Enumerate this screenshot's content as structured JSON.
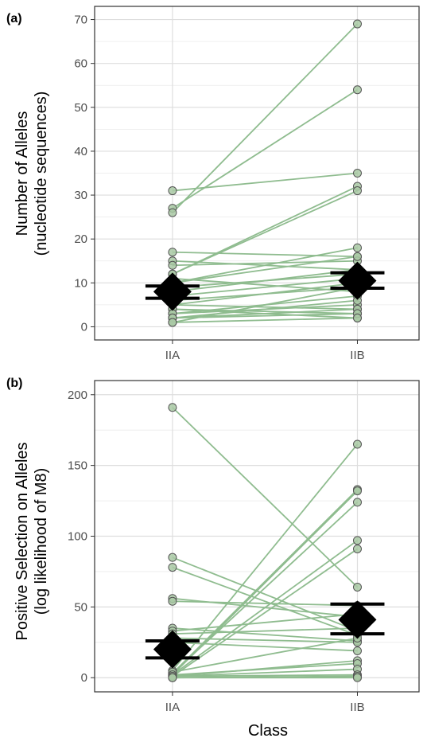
{
  "chart_data": [
    {
      "type": "scatter",
      "panel_label": "(a)",
      "ylabel_lines": [
        "Number of Alleles",
        "(nucleotide sequences)"
      ],
      "xlabel": "",
      "categories": [
        "IIA",
        "IIB"
      ],
      "ylim": [
        -3,
        73
      ],
      "yticks": [
        0,
        10,
        20,
        30,
        40,
        50,
        60,
        70
      ],
      "ytick_labels": [
        "0",
        "10",
        "20",
        "30",
        "40",
        "50",
        "60",
        "70"
      ],
      "grid": true,
      "paired_lines": [
        [
          31,
          35
        ],
        [
          27,
          54
        ],
        [
          26,
          69
        ],
        [
          17,
          16
        ],
        [
          15,
          13
        ],
        [
          14,
          15
        ],
        [
          12,
          32
        ],
        [
          12,
          31
        ],
        [
          11,
          8
        ],
        [
          10,
          16
        ],
        [
          10,
          18
        ],
        [
          9,
          12
        ],
        [
          8,
          13
        ],
        [
          7,
          11
        ],
        [
          6,
          9
        ],
        [
          5,
          10
        ],
        [
          5,
          4
        ],
        [
          4,
          3
        ],
        [
          4,
          2
        ],
        [
          3,
          7
        ],
        [
          3,
          5
        ],
        [
          2,
          4
        ],
        [
          2,
          6
        ],
        [
          2,
          3
        ],
        [
          1,
          2
        ],
        [
          1,
          9
        ]
      ],
      "summary": [
        {
          "category": "IIA",
          "mean": 8,
          "lower": 6.5,
          "upper": 9.3
        },
        {
          "category": "IIB",
          "mean": 10.5,
          "lower": 8.8,
          "upper": 12.3
        }
      ],
      "colors": {
        "line": "#8fbc8f",
        "point_fill": "#a9c9a4",
        "point_edge": "#555555",
        "mean_marker": "#000000"
      }
    },
    {
      "type": "scatter",
      "panel_label": "(b)",
      "ylabel_lines": [
        "Positive Selection on Alleles",
        "(log likelihood of M8)"
      ],
      "xlabel": "Class",
      "categories": [
        "IIA",
        "IIB"
      ],
      "ylim": [
        -10,
        210
      ],
      "yticks": [
        0,
        50,
        100,
        150,
        200
      ],
      "ytick_labels": [
        "0",
        "50",
        "100",
        "150",
        "200"
      ],
      "grid": true,
      "paired_lines": [
        [
          191,
          64
        ],
        [
          85,
          33
        ],
        [
          78,
          30
        ],
        [
          56,
          43
        ],
        [
          54,
          51
        ],
        [
          35,
          26
        ],
        [
          33,
          45
        ],
        [
          31,
          35
        ],
        [
          28,
          25
        ],
        [
          25,
          19
        ],
        [
          5,
          165
        ],
        [
          3,
          133
        ],
        [
          2,
          132
        ],
        [
          3,
          124
        ],
        [
          2,
          97
        ],
        [
          1,
          91
        ],
        [
          4,
          28
        ],
        [
          1,
          12
        ],
        [
          2,
          10
        ],
        [
          1,
          6
        ],
        [
          1,
          2
        ],
        [
          0,
          1
        ],
        [
          0,
          0
        ]
      ],
      "summary": [
        {
          "category": "IIA",
          "mean": 20,
          "lower": 14,
          "upper": 26
        },
        {
          "category": "IIB",
          "mean": 41,
          "lower": 31,
          "upper": 52
        }
      ],
      "colors": {
        "line": "#8fbc8f",
        "point_fill": "#a9c9a4",
        "point_edge": "#555555",
        "mean_marker": "#000000"
      }
    }
  ]
}
